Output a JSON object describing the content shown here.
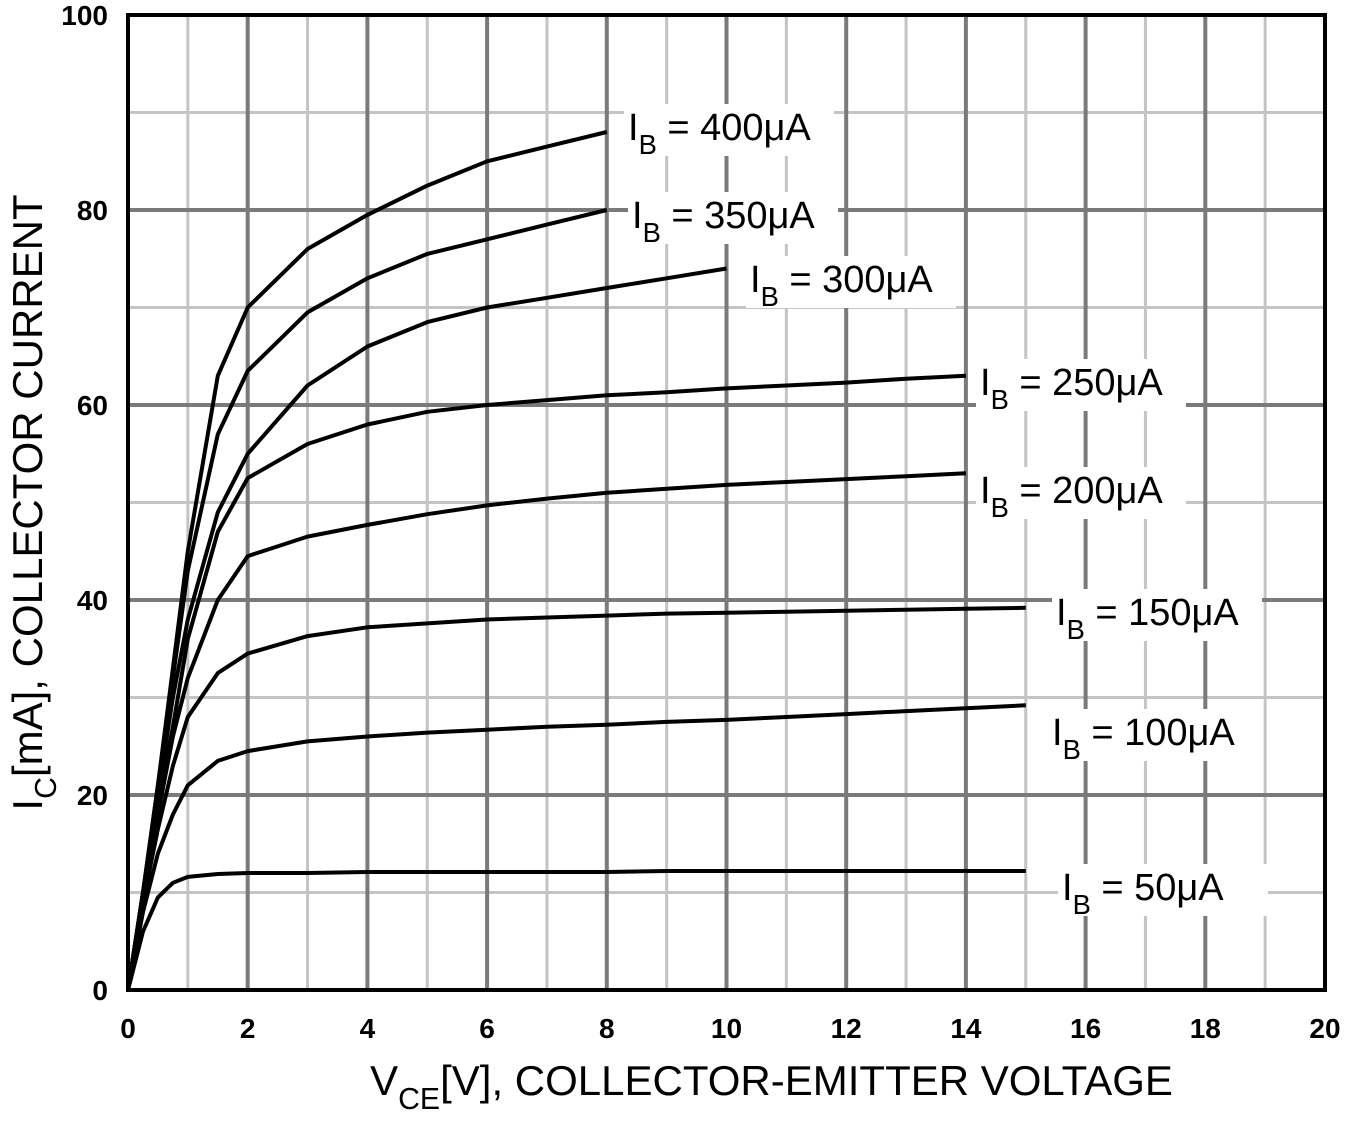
{
  "chart_data": {
    "type": "line",
    "x_label": "VCE[V], COLLECTOR-EMITTER VOLTAGE",
    "y_label": "IC[mA], COLLECTOR CURRENT",
    "x": [
      0,
      0.25,
      0.5,
      0.75,
      1,
      1.5,
      2,
      3,
      4,
      5,
      6,
      7,
      8,
      9,
      10,
      11,
      12,
      13,
      14,
      15
    ],
    "series": [
      {
        "name": "IB = 400μA",
        "color": "#000000",
        "values": [
          0,
          10,
          21,
          33,
          45,
          63,
          70,
          76,
          79.5,
          82.5,
          85,
          86.5,
          88,
          null,
          null,
          null,
          null,
          null,
          null,
          null
        ]
      },
      {
        "name": "IB = 350μA",
        "color": "#000000",
        "values": [
          0,
          10,
          21,
          32,
          43,
          57,
          63.5,
          69.5,
          73,
          75.5,
          77,
          78.5,
          80,
          null,
          null,
          null,
          null,
          null,
          null,
          null
        ]
      },
      {
        "name": "IB = 300μA",
        "color": "#000000",
        "values": [
          0,
          10,
          20,
          30,
          38,
          49,
          55,
          62,
          66,
          68.5,
          70,
          71,
          72,
          73,
          74,
          null,
          null,
          null,
          null,
          null
        ]
      },
      {
        "name": "IB = 250μA",
        "color": "#000000",
        "values": [
          0,
          10,
          19,
          27,
          36,
          47,
          52.5,
          56,
          58,
          59.3,
          60,
          60.5,
          61,
          61.3,
          61.7,
          62,
          62.3,
          62.7,
          63,
          null
        ]
      },
      {
        "name": "IB = 200μA",
        "color": "#000000",
        "values": [
          0,
          10,
          18,
          26,
          32,
          40,
          44.5,
          46.5,
          47.7,
          48.8,
          49.7,
          50.4,
          51,
          51.4,
          51.8,
          52.1,
          52.4,
          52.7,
          53,
          null
        ]
      },
      {
        "name": "IB = 150μA",
        "color": "#000000",
        "values": [
          0,
          9,
          16.5,
          23,
          28,
          32.5,
          34.5,
          36.3,
          37.2,
          37.6,
          38,
          38.2,
          38.4,
          38.6,
          38.7,
          38.8,
          38.9,
          39,
          39.1,
          39.2
        ]
      },
      {
        "name": "IB = 100μA",
        "color": "#000000",
        "values": [
          0,
          8,
          14,
          18,
          21,
          23.5,
          24.5,
          25.5,
          26,
          26.4,
          26.7,
          27,
          27.2,
          27.5,
          27.7,
          28,
          28.3,
          28.6,
          28.9,
          29.2
        ]
      },
      {
        "name": "IB = 50μA",
        "color": "#000000",
        "values": [
          0,
          6,
          9.5,
          11,
          11.6,
          11.9,
          12,
          12,
          12.1,
          12.1,
          12.1,
          12.1,
          12.1,
          12.2,
          12.2,
          12.2,
          12.2,
          12.2,
          12.2,
          12.2
        ]
      }
    ],
    "xlim": [
      0,
      20
    ],
    "xticks": [
      0,
      2,
      4,
      6,
      8,
      10,
      12,
      14,
      16,
      18,
      20
    ],
    "ylim": [
      0,
      100
    ],
    "yticks": [
      0,
      20,
      40,
      60,
      80,
      100
    ],
    "grid": true
  }
}
